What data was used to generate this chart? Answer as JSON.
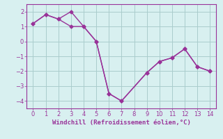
{
  "line1_x": [
    0,
    1,
    2,
    3,
    4,
    5,
    6,
    7,
    9,
    10,
    11,
    12,
    13,
    14
  ],
  "line1_y": [
    1.2,
    1.8,
    1.5,
    2.0,
    1.0,
    0.0,
    -3.5,
    -4.0,
    -2.1,
    -1.35,
    -1.1,
    -0.5,
    -1.7,
    -2.0
  ],
  "line2_x": [
    0,
    1,
    2,
    3,
    4,
    5,
    6,
    7,
    9,
    10,
    11,
    12,
    13,
    14
  ],
  "line2_y": [
    1.2,
    1.8,
    1.5,
    1.0,
    1.0,
    0.0,
    -3.5,
    -4.0,
    -2.1,
    -1.35,
    -1.1,
    -0.5,
    -1.7,
    -2.0
  ],
  "line_color": "#993399",
  "bg_color": "#d8f0f0",
  "grid_color": "#aacccc",
  "xlabel": "Windchill (Refroidissement éolien,°C)",
  "xlim": [
    -0.5,
    14.5
  ],
  "ylim": [
    -4.5,
    2.5
  ],
  "xticks": [
    0,
    1,
    2,
    3,
    4,
    5,
    6,
    7,
    8,
    9,
    10,
    11,
    12,
    13,
    14
  ],
  "yticks": [
    -4,
    -3,
    -2,
    -1,
    0,
    1,
    2
  ],
  "marker": "D",
  "markersize": 2.5,
  "linewidth": 1.0,
  "xlabel_fontsize": 6.5,
  "tick_fontsize": 6.0
}
